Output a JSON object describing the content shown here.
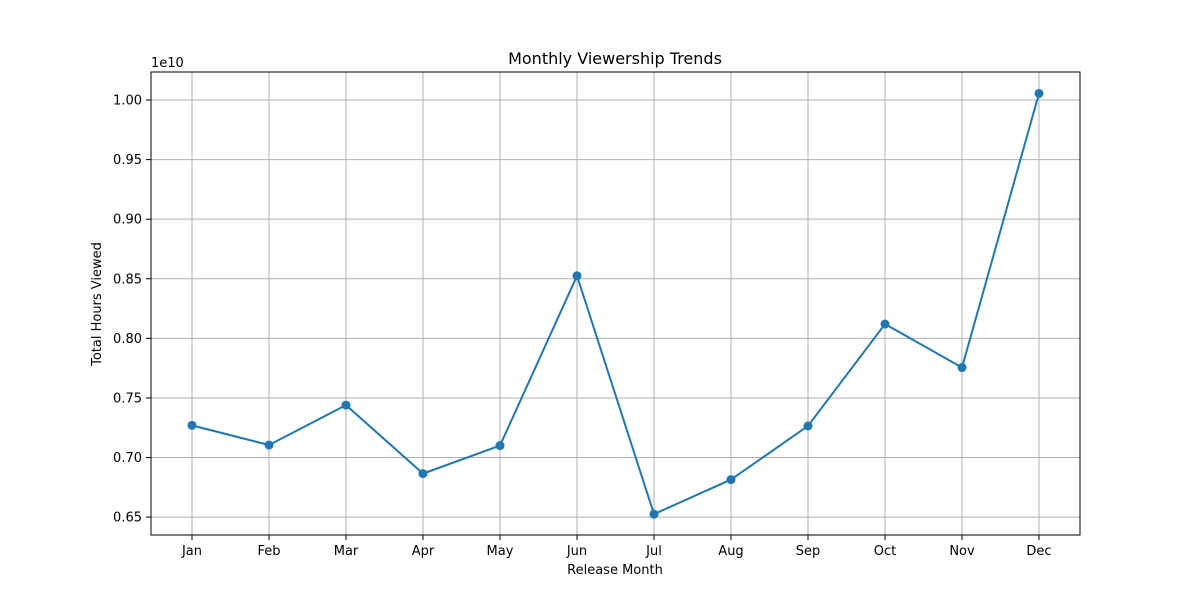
{
  "chart_data": {
    "type": "line",
    "title": "Monthly Viewership Trends",
    "xlabel": "Release Month",
    "ylabel": "Total Hours Viewed",
    "y_offset_label": "1e10",
    "y_scale_factor": 10000000000,
    "categories": [
      "Jan",
      "Feb",
      "Mar",
      "Apr",
      "May",
      "Jun",
      "Jul",
      "Aug",
      "Sep",
      "Oct",
      "Nov",
      "Dec"
    ],
    "series": [
      {
        "values": [
          7270000000,
          7105000000,
          7440000000,
          6865000000,
          7100000000,
          8525000000,
          6525000000,
          6815000000,
          7265000000,
          8120000000,
          7755000000,
          10055000000
        ],
        "color": "#1f77b4",
        "marker": "circle"
      }
    ],
    "y_ticks": [
      0.65,
      0.7,
      0.75,
      0.8,
      0.85,
      0.9,
      0.95,
      1.0
    ],
    "y_tick_labels": [
      "0.65",
      "0.70",
      "0.75",
      "0.80",
      "0.85",
      "0.90",
      "0.95",
      "1.00"
    ],
    "ylim": [
      6350000000,
      10235000000
    ],
    "grid": true,
    "legend": "none"
  }
}
